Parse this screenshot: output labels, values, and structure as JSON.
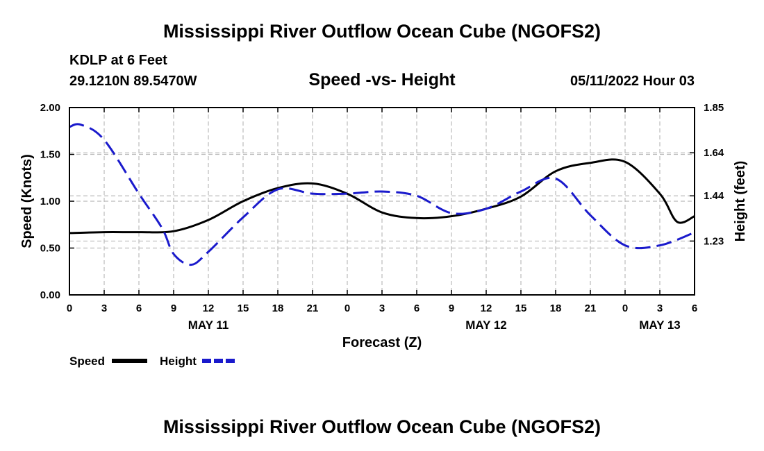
{
  "header": {
    "title": "Mississippi River Outflow Ocean Cube (NGOFS2)",
    "station": "KDLP at 6 Feet",
    "coordinates": "29.1210N  89.5470W",
    "subtitle": "Speed -vs- Height",
    "timestamp": "05/11/2022 Hour 03"
  },
  "footer": {
    "title": "Mississippi River Outflow Ocean Cube (NGOFS2)"
  },
  "colors": {
    "speed": "#000000",
    "height": "#1a1acc",
    "grid": "#bbbbbb"
  },
  "chart_data": {
    "type": "line",
    "title": "Speed -vs- Height",
    "xlabel": "Forecast (Z)",
    "ylabel": "Speed (Knots)",
    "y2label": "Height (feet)",
    "x_range": [
      0,
      54
    ],
    "x_tick_values": [
      0,
      3,
      6,
      9,
      12,
      15,
      18,
      21,
      24,
      27,
      30,
      33,
      36,
      39,
      42,
      45,
      48,
      51,
      54
    ],
    "x_tick_labels": [
      "0",
      "3",
      "6",
      "9",
      "12",
      "15",
      "18",
      "21",
      "0",
      "3",
      "6",
      "9",
      "12",
      "15",
      "18",
      "21",
      "0",
      "3",
      "6"
    ],
    "day_labels": [
      {
        "x": 12,
        "label": "MAY 11"
      },
      {
        "x": 36,
        "label": "MAY 12"
      },
      {
        "x": 51,
        "label": "MAY 13"
      }
    ],
    "ylim": [
      0,
      2.0
    ],
    "y_ticks": [
      0,
      0.5,
      1.0,
      1.5,
      2.0
    ],
    "y_tick_labels": [
      "0.00",
      "0.50",
      "1.00",
      "1.50",
      "2.00"
    ],
    "y2lim": [
      0.98,
      1.85
    ],
    "y2_ticks": [
      1.23,
      1.44,
      1.64,
      1.85
    ],
    "y2_tick_labels": [
      "1.23",
      "1.44",
      "1.64",
      "1.85"
    ],
    "grid": true,
    "legend_position": "bottom-left",
    "series": [
      {
        "name": "Speed",
        "axis": "left",
        "style": "solid",
        "x": [
          0,
          3,
          6,
          9,
          12,
          15,
          18,
          21,
          24,
          27,
          30,
          33,
          36,
          39,
          42,
          45,
          48,
          51,
          52.5,
          54
        ],
        "values": [
          0.66,
          0.67,
          0.67,
          0.68,
          0.8,
          1.0,
          1.14,
          1.19,
          1.08,
          0.88,
          0.82,
          0.84,
          0.92,
          1.05,
          1.32,
          1.41,
          1.42,
          1.08,
          0.78,
          0.84
        ]
      },
      {
        "name": "Height",
        "axis": "right",
        "style": "dashed",
        "x": [
          0,
          1,
          3,
          6,
          8,
          9,
          10.5,
          12,
          15,
          18,
          21,
          24,
          27,
          30,
          33,
          36,
          39,
          42,
          45,
          48,
          51,
          54
        ],
        "values": [
          1.76,
          1.77,
          1.7,
          1.45,
          1.29,
          1.17,
          1.12,
          1.18,
          1.34,
          1.47,
          1.45,
          1.45,
          1.46,
          1.44,
          1.36,
          1.38,
          1.46,
          1.52,
          1.35,
          1.21,
          1.21,
          1.27
        ]
      }
    ]
  }
}
